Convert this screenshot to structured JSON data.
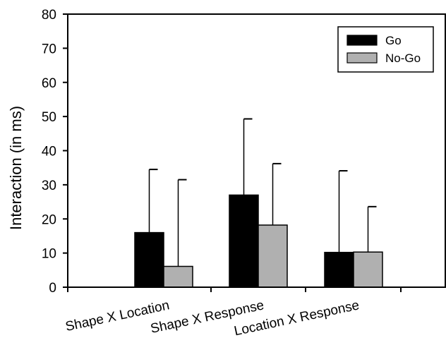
{
  "chart_data": {
    "type": "bar",
    "title": "",
    "xlabel": "",
    "ylabel": "Interaction (in ms)",
    "categories": [
      "Shape X Location",
      "Shape X Response",
      "Location X Response"
    ],
    "series": [
      {
        "name": "Go",
        "color": "#000000",
        "values": [
          16,
          27,
          10.2
        ],
        "error_upper": [
          34.5,
          49.3,
          34.1
        ]
      },
      {
        "name": "No-Go",
        "color": "#b0b0b0",
        "values": [
          6.1,
          18.2,
          10.3
        ],
        "error_upper": [
          31.5,
          36.2,
          23.6
        ]
      }
    ],
    "ylim": [
      0,
      80
    ],
    "yticks": [
      0,
      10,
      20,
      30,
      40,
      50,
      60,
      70,
      80
    ],
    "grid": false,
    "legend_position": "top-right",
    "error_bars": "upper whisker only"
  }
}
